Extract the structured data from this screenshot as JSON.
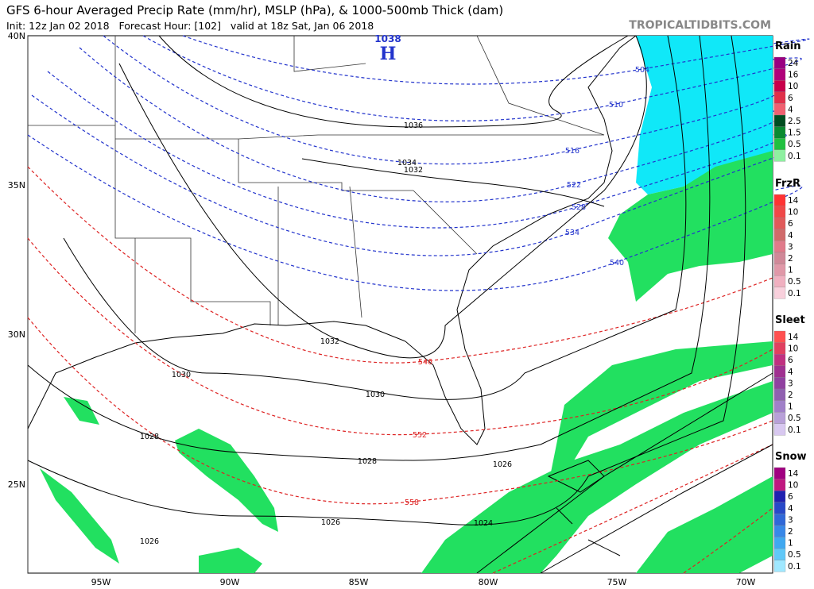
{
  "header": {
    "title": "GFS 6-hour Averaged Precip Rate (mm/hr), MSLP (hPa), & 1000-500mb Thick (dam)",
    "subtitle": "Init: 12z Jan 02 2018   Forecast Hour: [102]   valid at 18z Sat, Jan 06 2018",
    "site": "TROPICALTIDBITS.COM"
  },
  "map": {
    "lat_labels": [
      "40N",
      "35N",
      "30N",
      "25N"
    ],
    "lon_labels": [
      "95W",
      "90W",
      "85W",
      "80W",
      "75W",
      "70W"
    ],
    "high": {
      "letter": "H",
      "pressure": "1038"
    },
    "thickness_labels": [
      "504",
      "510",
      "516",
      "522",
      "528",
      "534",
      "540",
      "546",
      "552",
      "558"
    ],
    "isobar_labels": [
      "1036",
      "1034",
      "1032",
      "1032",
      "1030",
      "1030",
      "1028",
      "1028",
      "1026",
      "1026",
      "1026",
      "1024"
    ]
  },
  "legend": [
    {
      "title": "Rain",
      "levels": [
        "24",
        "16",
        "10",
        "6",
        "4",
        "2.5",
        "1.5",
        "0.5",
        "0.1"
      ]
    },
    {
      "title": "FrzR",
      "levels": [
        "14",
        "10",
        "6",
        "4",
        "3",
        "2",
        "1",
        "0.5",
        "0.1"
      ]
    },
    {
      "title": "Sleet",
      "levels": [
        "14",
        "10",
        "6",
        "4",
        "3",
        "2",
        "1",
        "0.5",
        "0.1"
      ]
    },
    {
      "title": "Snow",
      "levels": [
        "14",
        "10",
        "6",
        "4",
        "3",
        "2",
        "1",
        "0.5",
        "0.1"
      ]
    }
  ]
}
